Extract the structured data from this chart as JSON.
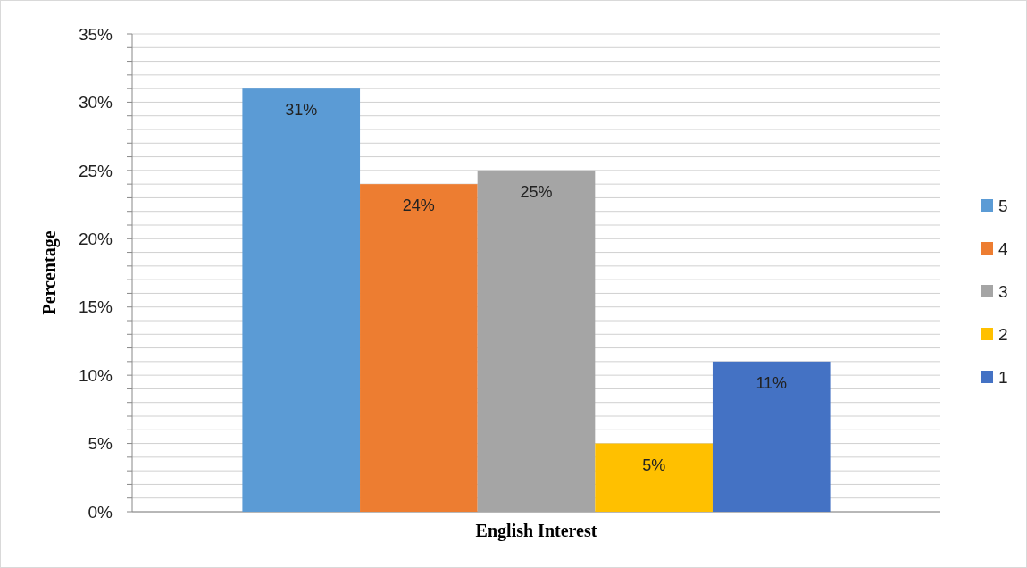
{
  "chart_data": {
    "type": "bar",
    "categories": [
      "English Interest"
    ],
    "ylabel": "Percentage",
    "series": [
      {
        "name": "5",
        "color": "#5b9bd5",
        "values": [
          31
        ],
        "value_labels": [
          "31%"
        ]
      },
      {
        "name": "4",
        "color": "#ed7d31",
        "values": [
          24
        ],
        "value_labels": [
          "24%"
        ]
      },
      {
        "name": "3",
        "color": "#a5a5a5",
        "values": [
          25
        ],
        "value_labels": [
          "25%"
        ]
      },
      {
        "name": "2",
        "color": "#ffc000",
        "values": [
          5
        ],
        "value_labels": [
          "5%"
        ]
      },
      {
        "name": "1",
        "color": "#4472c4",
        "values": [
          11
        ],
        "value_labels": [
          "11%"
        ]
      }
    ],
    "ylim": [
      0,
      35
    ],
    "yticks": [
      {
        "value": 0,
        "label": "0%"
      },
      {
        "value": 1,
        "label": null
      },
      {
        "value": 2,
        "label": null
      },
      {
        "value": 3,
        "label": null
      },
      {
        "value": 4,
        "label": null
      },
      {
        "value": 5,
        "label": "5%"
      },
      {
        "value": 6,
        "label": null
      },
      {
        "value": 7,
        "label": null
      },
      {
        "value": 8,
        "label": null
      },
      {
        "value": 9,
        "label": null
      },
      {
        "value": 10,
        "label": "10%"
      },
      {
        "value": 11,
        "label": null
      },
      {
        "value": 12,
        "label": null
      },
      {
        "value": 13,
        "label": null
      },
      {
        "value": 14,
        "label": null
      },
      {
        "value": 15,
        "label": "15%"
      },
      {
        "value": 16,
        "label": null
      },
      {
        "value": 17,
        "label": null
      },
      {
        "value": 18,
        "label": null
      },
      {
        "value": 19,
        "label": null
      },
      {
        "value": 20,
        "label": "20%"
      },
      {
        "value": 21,
        "label": null
      },
      {
        "value": 22,
        "label": null
      },
      {
        "value": 23,
        "label": null
      },
      {
        "value": 24,
        "label": null
      },
      {
        "value": 25,
        "label": "25%"
      },
      {
        "value": 26,
        "label": null
      },
      {
        "value": 27,
        "label": null
      },
      {
        "value": 28,
        "label": null
      },
      {
        "value": 29,
        "label": null
      },
      {
        "value": 30,
        "label": "30%"
      },
      {
        "value": 31,
        "label": null
      },
      {
        "value": 32,
        "label": null
      },
      {
        "value": 33,
        "label": null
      },
      {
        "value": 34,
        "label": null
      },
      {
        "value": 35,
        "label": "35%"
      }
    ],
    "grid": "y",
    "legend": "right"
  }
}
